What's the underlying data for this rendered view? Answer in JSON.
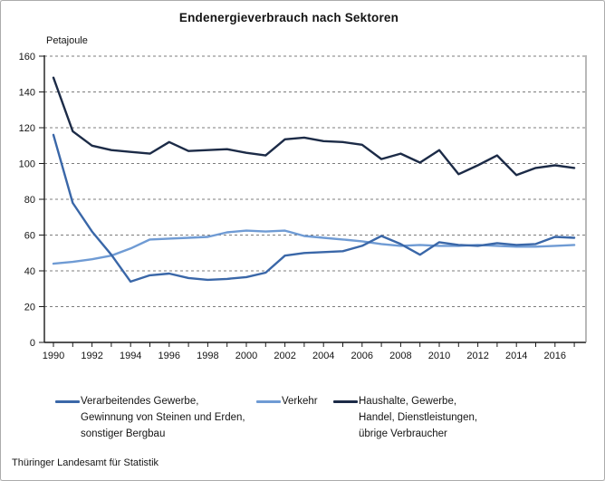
{
  "header": {
    "title": "Endenergieverbrauch nach Sektoren"
  },
  "axis": {
    "unit_label": "Petajoule"
  },
  "footer": {
    "source": "Thüringer Landesamt für Statistik"
  },
  "colors": {
    "series_industry": "#3a67a8",
    "series_transport": "#6f9bd4",
    "series_households": "#1c2b47",
    "gridline": "#7c7c7c",
    "axis": "#1a1a1a"
  },
  "legend": {
    "items": [
      {
        "color": "#3a67a8",
        "lines": [
          "Verarbeitendes Gewerbe,",
          "Gewinnung von Steinen und Erden,",
          "sonstiger Bergbau"
        ]
      },
      {
        "color": "#6f9bd4",
        "lines": [
          "Verkehr"
        ]
      },
      {
        "color": "#1c2b47",
        "lines": [
          "Haushalte, Gewerbe,",
          "Handel, Dienstleistungen,",
          "übrige Verbraucher"
        ]
      }
    ]
  },
  "chart_data": {
    "type": "line",
    "title": "Endenergieverbrauch nach Sektoren",
    "ylabel": "Petajoule",
    "xlabel": "",
    "ylim": [
      0,
      160
    ],
    "y_ticks": [
      0,
      20,
      40,
      60,
      80,
      100,
      120,
      140,
      160
    ],
    "grid": "horizontal dashed",
    "legend_position": "bottom",
    "x": [
      1990,
      1991,
      1992,
      1993,
      1994,
      1995,
      1996,
      1997,
      1998,
      1999,
      2000,
      2001,
      2002,
      2003,
      2004,
      2005,
      2006,
      2007,
      2008,
      2009,
      2010,
      2011,
      2012,
      2013,
      2014,
      2015,
      2016,
      2017
    ],
    "x_tick_labels": [
      1990,
      1992,
      1994,
      1996,
      1998,
      2000,
      2002,
      2004,
      2006,
      2008,
      2010,
      2012,
      2014,
      2016
    ],
    "series": [
      {
        "name": "Verarbeitendes Gewerbe, Gewinnung von Steinen und Erden, sonstiger Bergbau",
        "color": "#3a67a8",
        "values": [
          116,
          78,
          62,
          49,
          34,
          37.5,
          38.5,
          36,
          35,
          35.5,
          36.5,
          39,
          48.5,
          50,
          50.5,
          51,
          54,
          59.5,
          55,
          49,
          56,
          54.5,
          54,
          55.5,
          54.5,
          55,
          59,
          58.5
        ]
      },
      {
        "name": "Verkehr",
        "color": "#6f9bd4",
        "values": [
          44,
          45,
          46.5,
          48.5,
          52.5,
          57.5,
          58,
          58.5,
          59,
          61.5,
          62.5,
          62,
          62.5,
          59.5,
          58.5,
          57.5,
          56.5,
          55,
          54,
          54.5,
          54,
          54,
          54.5,
          54,
          53.5,
          53.5,
          54,
          54.5
        ]
      },
      {
        "name": "Haushalte, Gewerbe, Handel, Dienstleistungen, übrige Verbraucher",
        "color": "#1c2b47",
        "values": [
          148,
          118,
          110,
          107.5,
          106.5,
          105.5,
          112,
          107,
          107.5,
          108,
          106,
          104.5,
          113.5,
          114.5,
          112.5,
          112,
          110.5,
          102.5,
          105.5,
          100.5,
          107.5,
          94,
          99,
          104.5,
          93.5,
          97.5,
          99,
          97.5
        ]
      }
    ]
  }
}
